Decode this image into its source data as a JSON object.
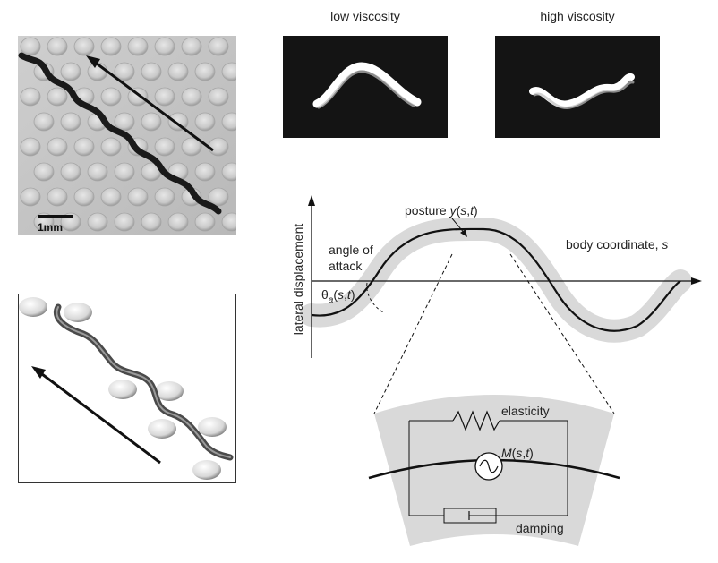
{
  "top_labels": {
    "low": "low viscosity",
    "high": "high viscosity"
  },
  "scale_bar": "1mm",
  "plot": {
    "ylabel": "lateral displacement",
    "posture_label": "posture y(s,t)",
    "posture_prefix": "posture ",
    "posture_y": "y",
    "posture_args_open": "(",
    "posture_s": "s",
    "posture_comma": ",",
    "posture_t": "t",
    "posture_args_close": ")",
    "body_coordinate_label": "body coordinate, s",
    "body_coord_prefix": "body coordinate, ",
    "body_coord_s": "s",
    "angle_line1": "angle of",
    "angle_line2": "attack",
    "theta_label": "θa(s,t)",
    "theta_symbol": "θ",
    "theta_sub": "a",
    "theta_args_open": "(",
    "theta_s": "s",
    "theta_comma": ",",
    "theta_t": "t",
    "theta_args_close": ")"
  },
  "mechanics": {
    "elasticity": "elasticity",
    "damping": "damping",
    "motor_label": "M(s,t)",
    "motor_M": "M",
    "motor_open": "(",
    "motor_s": "s",
    "motor_comma": ",",
    "motor_t": "t",
    "motor_close": ")"
  },
  "colors": {
    "band": "#d9d9d9",
    "dark_panel": "#141414",
    "line": "#111111"
  }
}
